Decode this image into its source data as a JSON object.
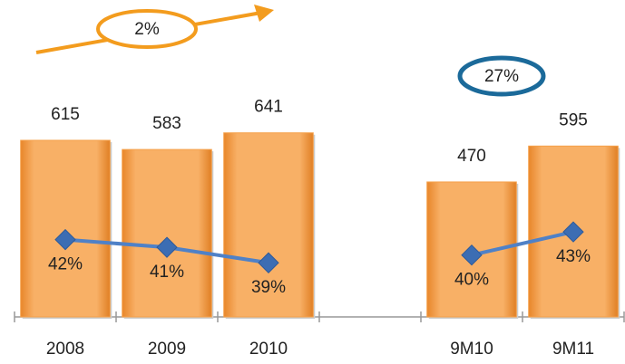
{
  "chart_data": {
    "type": "combo",
    "categories": [
      "2008",
      "2009",
      "2010",
      null,
      "9M10",
      "9M11"
    ],
    "series": [
      {
        "type": "bar",
        "color": "#f5a049",
        "values": [
          615,
          583,
          641,
          null,
          470,
          595
        ]
      },
      {
        "type": "line",
        "axis": "y2",
        "color": "#4f81c7",
        "values": [
          42,
          41,
          39,
          null,
          40,
          43
        ],
        "value_labels": [
          "42%",
          "41%",
          "39%",
          null,
          "40%",
          "43%"
        ]
      }
    ],
    "ylim": [
      0,
      700
    ],
    "y2lim": [
      32,
      58
    ],
    "annotations": [
      {
        "text": "2%",
        "color": "#f39c1e"
      },
      {
        "text": "27%",
        "color": "#1b6a9a"
      }
    ]
  }
}
